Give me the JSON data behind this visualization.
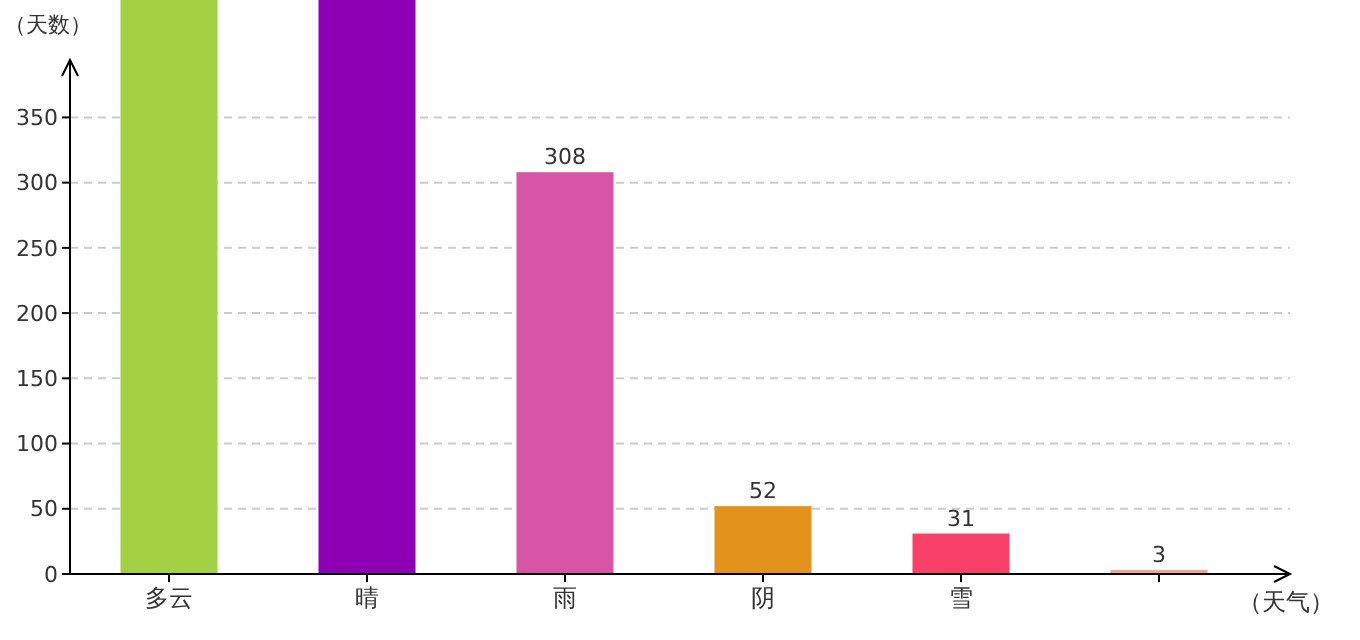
{
  "chart_data": {
    "type": "bar",
    "xlabel": "（天气）",
    "ylabel": "（天数）",
    "categories": [
      "多云",
      "晴",
      "雨",
      "阴",
      "雪",
      null
    ],
    "values": [
      440,
      440,
      308,
      52,
      31,
      3
    ],
    "value_labels": [
      null,
      null,
      "308",
      "52",
      "31",
      "3"
    ],
    "colors": [
      "#a4d043",
      "#8e00b4",
      "#d655a6",
      "#e3921c",
      "#f94069",
      "#f5a08a"
    ],
    "ylim": [
      0,
      440
    ],
    "yticks": [
      0,
      50,
      100,
      150,
      200,
      250,
      300,
      350
    ],
    "grid": "y"
  }
}
